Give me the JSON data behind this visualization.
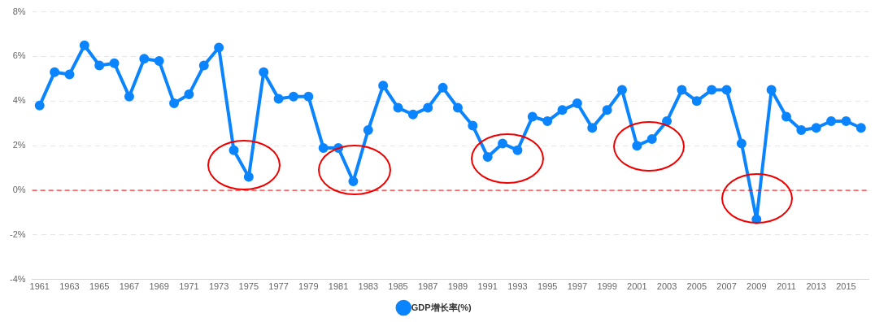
{
  "chart_data": {
    "type": "line",
    "categories": [
      "1961",
      null,
      "1963",
      null,
      "1965",
      null,
      "1967",
      null,
      "1969",
      null,
      "1971",
      null,
      "1973",
      null,
      "1975",
      null,
      "1977",
      null,
      "1979",
      null,
      "1981",
      null,
      "1983",
      null,
      "1985",
      null,
      "1987",
      null,
      "1989",
      null,
      "1991",
      null,
      "1993",
      null,
      "1995",
      null,
      "1997",
      null,
      "1999",
      null,
      "2001",
      null,
      "2003",
      null,
      "2005",
      null,
      "2007",
      null,
      "2009",
      null,
      "2011",
      null,
      "2013",
      null,
      "2015",
      null
    ],
    "series": [
      {
        "name": "GDP增长率(%)",
        "color": "#0a84ff",
        "values": [
          3.8,
          5.3,
          5.2,
          6.5,
          5.6,
          5.7,
          4.2,
          5.9,
          5.8,
          3.9,
          4.3,
          5.6,
          6.4,
          1.8,
          0.6,
          5.3,
          4.1,
          4.2,
          4.2,
          1.9,
          1.9,
          0.4,
          2.7,
          4.7,
          3.7,
          3.4,
          3.7,
          4.6,
          3.7,
          2.9,
          1.5,
          2.1,
          1.8,
          3.3,
          3.1,
          3.6,
          3.9,
          2.8,
          3.6,
          4.5,
          2.0,
          2.3,
          3.1,
          4.5,
          4.0,
          4.5,
          4.5,
          2.1,
          -1.3,
          4.5,
          3.3,
          2.7,
          2.8,
          3.1,
          3.1,
          2.8
        ]
      }
    ],
    "ylim": [
      -4,
      8
    ],
    "yticks": [
      {
        "value": -4,
        "label": "-4%"
      },
      {
        "value": -2,
        "label": "-2%"
      },
      {
        "value": 0,
        "label": "0%"
      },
      {
        "value": 2,
        "label": "2%"
      },
      {
        "value": 4,
        "label": "4%"
      },
      {
        "value": 6,
        "label": "6%"
      },
      {
        "value": 8,
        "label": "8%"
      }
    ],
    "grid": "y",
    "legend": "bottom",
    "marker": "circle",
    "line_style": "solid",
    "ref_lines": [
      {
        "axis": "y",
        "value": 0,
        "color": "#ff0000",
        "line_style": "dashed"
      }
    ]
  }
}
